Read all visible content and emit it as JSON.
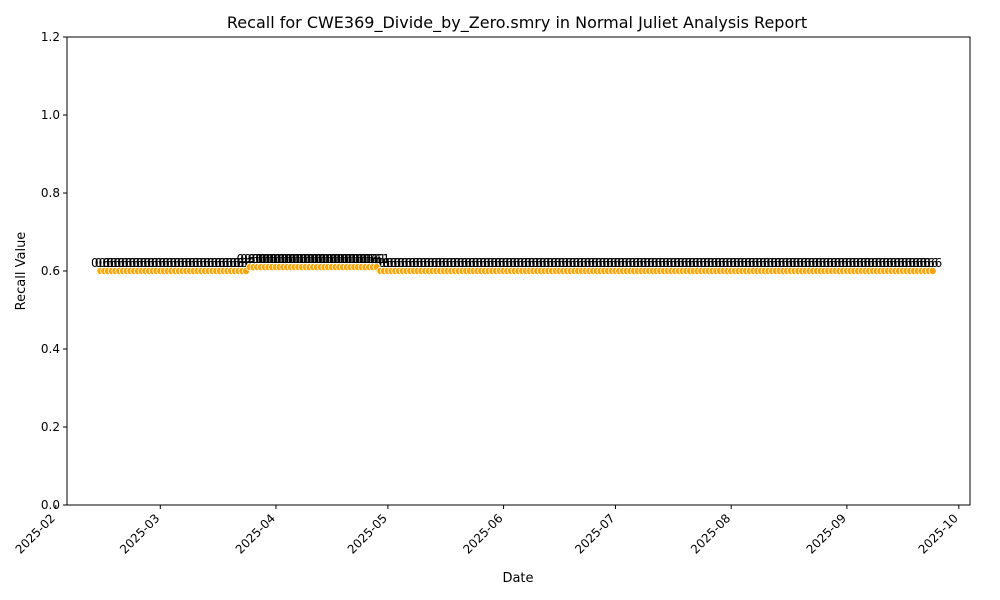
{
  "chart_data": {
    "type": "scatter",
    "title": "Recall for CWE369_Divide_by_Zero.smry in Normal Juliet Analysis Report",
    "xlabel": "Date",
    "ylabel": "Recall Value",
    "ylim": [
      0.0,
      1.2
    ],
    "xlim": [
      "2025-02-04",
      "2025-10-04"
    ],
    "x_ticks": [
      "2025-02",
      "2025-03",
      "2025-04",
      "2025-05",
      "2025-06",
      "2025-07",
      "2025-08",
      "2025-09",
      "2025-10"
    ],
    "y_ticks": [
      "0.0",
      "0.2",
      "0.4",
      "0.6",
      "0.8",
      "1.0",
      "1.2"
    ],
    "grid": false,
    "marker_color": "#ffa500",
    "series": [
      {
        "start": "2025-02-13",
        "end": "2025-03-24",
        "value": 0.6,
        "label": "0.6"
      },
      {
        "start": "2025-03-25",
        "end": "2025-04-28",
        "value": 0.61,
        "label": "0.61"
      },
      {
        "start": "2025-04-29",
        "end": "2025-09-24",
        "value": 0.6,
        "label": "0.6"
      }
    ]
  }
}
